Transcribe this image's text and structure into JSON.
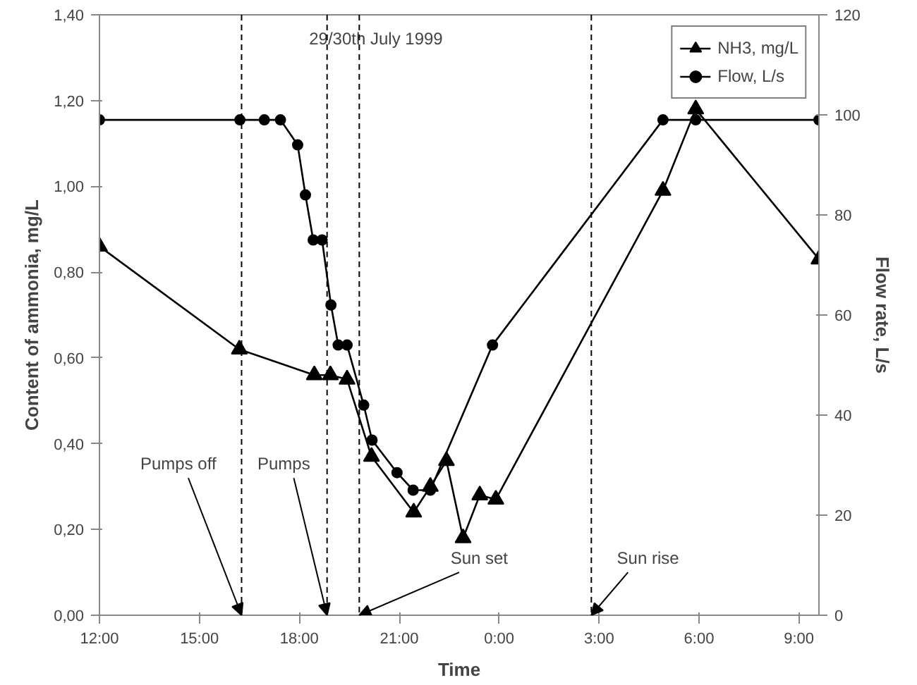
{
  "chart_data": {
    "type": "line",
    "title": "29/30th July 1999",
    "xlabel": "Time",
    "ylabel": "Content of ammonia, mg/L",
    "y2label": "Flow rate, L/s",
    "xlim": [
      "1999-07-29T12:00",
      "1999-07-30T09:36"
    ],
    "ylim": [
      0,
      1.4
    ],
    "y2lim": [
      0,
      120
    ],
    "xticks": [
      {
        "value": "1999-07-29T12:00",
        "label": "12:00"
      },
      {
        "value": "1999-07-29T15:00",
        "label": "15:00"
      },
      {
        "value": "1999-07-29T18:00",
        "label": "18:00"
      },
      {
        "value": "1999-07-29T21:00",
        "label": "21:00"
      },
      {
        "value": "1999-07-30T00:00",
        "label": "0:00"
      },
      {
        "value": "1999-07-30T03:00",
        "label": "3:00"
      },
      {
        "value": "1999-07-30T06:00",
        "label": "6:00"
      },
      {
        "value": "1999-07-30T09:00",
        "label": "9:00"
      }
    ],
    "yticks": [
      {
        "value": 0,
        "label": "0,00"
      },
      {
        "value": 0.2,
        "label": "0,20"
      },
      {
        "value": 0.4,
        "label": "0,40"
      },
      {
        "value": 0.6,
        "label": "0,60"
      },
      {
        "value": 0.8,
        "label": "0,80"
      },
      {
        "value": 1.0,
        "label": "1,00"
      },
      {
        "value": 1.2,
        "label": "1,20"
      },
      {
        "value": 1.4,
        "label": "1,40"
      }
    ],
    "y2ticks": [
      0,
      20,
      40,
      60,
      80,
      100,
      120
    ],
    "series": [
      {
        "name": "NH3, mg/L",
        "color": "#000000",
        "marker": "triangle",
        "x": [
          "1999-07-29T12:00",
          "1999-07-29T16:12",
          "1999-07-29T18:27",
          "1999-07-29T18:56",
          "1999-07-29T19:26",
          "1999-07-29T20:10",
          "1999-07-29T21:26",
          "1999-07-29T21:56",
          "1999-07-29T22:25",
          "1999-07-29T22:55",
          "1999-07-29T23:25",
          "1999-07-29T23:54",
          "1999-07-30T04:55",
          "1999-07-30T05:54",
          "1999-07-30T09:36"
        ],
        "values": [
          0.86,
          0.62,
          0.56,
          0.56,
          0.55,
          0.37,
          0.24,
          0.3,
          0.36,
          0.18,
          0.28,
          0.27,
          0.99,
          1.18,
          0.83
        ]
      },
      {
        "name": "Flow, L/s",
        "color": "#000000",
        "marker": "circle",
        "axis": "y2",
        "x": [
          "1999-07-29T12:00",
          "1999-07-29T16:13",
          "1999-07-29T16:57",
          "1999-07-29T17:26",
          "1999-07-29T17:57",
          "1999-07-29T18:11",
          "1999-07-29T18:25",
          "1999-07-29T18:41",
          "1999-07-29T18:57",
          "1999-07-29T19:10",
          "1999-07-29T19:26",
          "1999-07-29T19:56",
          "1999-07-29T20:11",
          "1999-07-29T20:56",
          "1999-07-29T21:25",
          "1999-07-29T21:56",
          "1999-07-29T23:48",
          "1999-07-30T04:55",
          "1999-07-30T05:54",
          "1999-07-30T09:36"
        ],
        "values": [
          99,
          99,
          99,
          99,
          94,
          84,
          75,
          75,
          62,
          54,
          54,
          42,
          35,
          28.5,
          25,
          25,
          54,
          99,
          99,
          99
        ]
      }
    ],
    "ref_lines": [
      {
        "axis": "x",
        "value": "1999-07-29T16:16",
        "label": "Pumps off",
        "line_style": "dashed"
      },
      {
        "axis": "x",
        "value": "1999-07-29T18:50",
        "label": "Pumps",
        "line_style": "dashed"
      },
      {
        "axis": "x",
        "value": "1999-07-29T19:48",
        "label": "Sun set",
        "line_style": "dashed"
      },
      {
        "axis": "x",
        "value": "1999-07-30T02:46",
        "label": "Sun rise",
        "line_style": "dashed"
      }
    ],
    "grid": false,
    "legend": "top right",
    "line_style": "solid"
  }
}
